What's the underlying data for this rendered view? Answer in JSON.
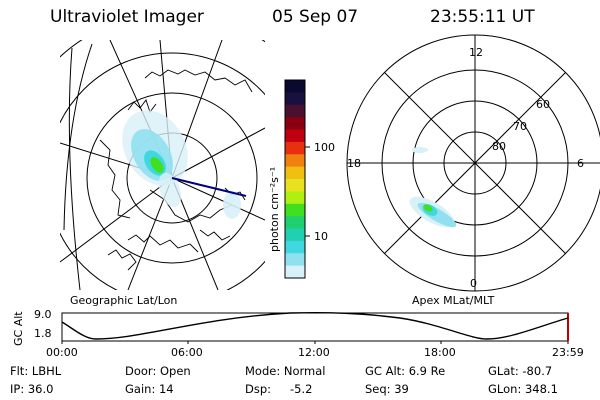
{
  "header": {
    "title": "Ultraviolet Imager",
    "date": "05 Sep 07",
    "time": "23:55:11 UT"
  },
  "colorbar": {
    "unit_label": "photon cm⁻²s⁻¹",
    "ticks": [
      "100",
      "10"
    ],
    "colors": [
      "#0a0a30",
      "#1a1040",
      "#4a1030",
      "#8a0010",
      "#c00010",
      "#e83010",
      "#f08010",
      "#f0c010",
      "#e8e020",
      "#b0f010",
      "#40e020",
      "#20d070",
      "#20d0b0",
      "#40d8e0",
      "#90e0f0",
      "#d8f0f8"
    ]
  },
  "geo_panel": {
    "caption": "Geographic Lat/Lon"
  },
  "apex_panel": {
    "caption": "Apex MLat/MLT",
    "mlt_labels": {
      "top": "12",
      "left": "18",
      "right": "6",
      "bottom": "0"
    },
    "lat_labels": [
      "60",
      "70",
      "80"
    ]
  },
  "altitude_plot": {
    "ylabel": "GC Alt",
    "yticks": [
      "9.0",
      "1.8"
    ],
    "xticks": [
      "00:00",
      "06:00",
      "12:00",
      "18:00",
      "23:59"
    ]
  },
  "footer": {
    "row1": {
      "filter": "Flt: LBHL",
      "door": "Door: Open",
      "mode": "Mode: Normal",
      "gc_alt": "GC Alt: 6.9 Re",
      "glat": "GLat: -80.7"
    },
    "row2": {
      "ip": "IP: 36.0",
      "gain": "Gain: 14",
      "dsp_label": "Dsp:",
      "dsp_value": "-5.2",
      "seq": "Seq: 39",
      "glon": "GLon: 348.1"
    }
  }
}
